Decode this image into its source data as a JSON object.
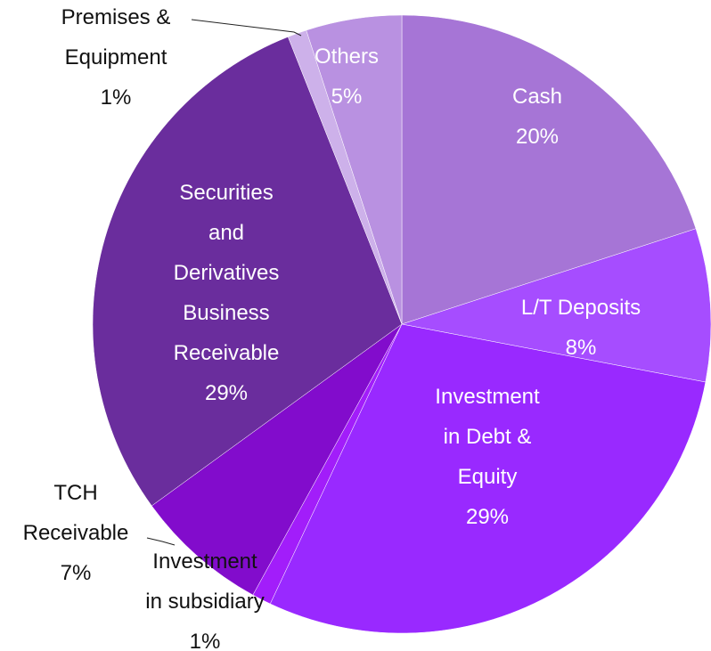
{
  "chart_data": {
    "type": "pie",
    "categories": [
      "Cash",
      "L/T Deposits",
      "Investment in Debt & Equity",
      "Investment in subsidiary",
      "TCH Receivable",
      "Securities and Derivatives Business Receivable",
      "Premises & Equipment",
      "Others"
    ],
    "values": [
      20,
      8,
      29,
      1,
      7,
      29,
      1,
      5
    ],
    "value_labels": [
      "20%",
      "8%",
      "29%",
      "1%",
      "7%",
      "29%",
      "1%",
      "5%"
    ],
    "colors": [
      "#a675d6",
      "#a64dff",
      "#9929ff",
      "#a21dfa",
      "#820ccc",
      "#6a2d9d",
      "#cdb1ea",
      "#b991e1"
    ]
  }
}
